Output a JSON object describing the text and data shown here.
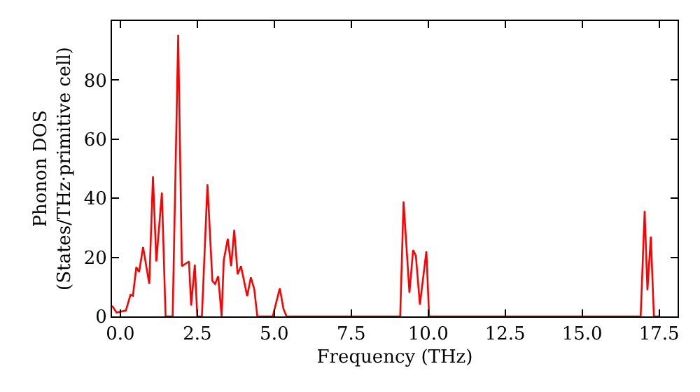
{
  "chart_data": {
    "type": "line",
    "xlabel": "Frequency (THz)",
    "ylabel": "Phonon DOS\n(States/THz·primitive cell)",
    "xlim": [
      -0.27,
      18.1
    ],
    "ylim": [
      0,
      100
    ],
    "xticks": [
      {
        "value": 0,
        "label": "0.0"
      },
      {
        "value": 2.5,
        "label": "2.5"
      },
      {
        "value": 5,
        "label": "5.0"
      },
      {
        "value": 7.5,
        "label": "7.5"
      },
      {
        "value": 10,
        "label": "10.0"
      },
      {
        "value": 12.5,
        "label": "12.5"
      },
      {
        "value": 15,
        "label": "15.0"
      },
      {
        "value": 17.5,
        "label": "17.5"
      }
    ],
    "yticks": [
      0,
      20,
      40,
      60,
      80
    ],
    "marker": "none",
    "line_style": "solid",
    "series": [
      {
        "color": "#ff0000",
        "x": [
          -0.27,
          -0.12,
          0.18,
          0.33,
          0.41,
          0.52,
          0.61,
          0.74,
          0.94,
          1.06,
          1.17,
          1.35,
          1.47,
          1.7,
          1.88,
          2.0,
          2.23,
          2.3,
          2.42,
          2.5,
          2.65,
          2.83,
          2.99,
          3.08,
          3.18,
          3.29,
          3.36,
          3.49,
          3.6,
          3.7,
          3.81,
          3.92,
          4.12,
          4.24,
          4.35,
          4.45,
          4.95,
          5.18,
          5.3,
          5.4,
          9.09,
          9.2,
          9.39,
          9.51,
          9.6,
          9.73,
          9.94,
          10.03,
          16.9,
          17.03,
          17.12,
          17.23,
          17.33,
          17.5
        ],
        "values": [
          3.6,
          1.3,
          2,
          7.3,
          7,
          16.7,
          15,
          23.5,
          11,
          47.4,
          18.6,
          41.9,
          0,
          0,
          95.3,
          17,
          18.6,
          3.7,
          17.5,
          0,
          0,
          44.7,
          12,
          11,
          13.6,
          0,
          19,
          26.3,
          17,
          29.3,
          14.3,
          17,
          6.9,
          13.2,
          9.3,
          0,
          0,
          9.5,
          2.5,
          0,
          0,
          38.9,
          8,
          22.5,
          20.5,
          4,
          22,
          0,
          0,
          35.7,
          8.9,
          27,
          0,
          0
        ]
      }
    ]
  }
}
